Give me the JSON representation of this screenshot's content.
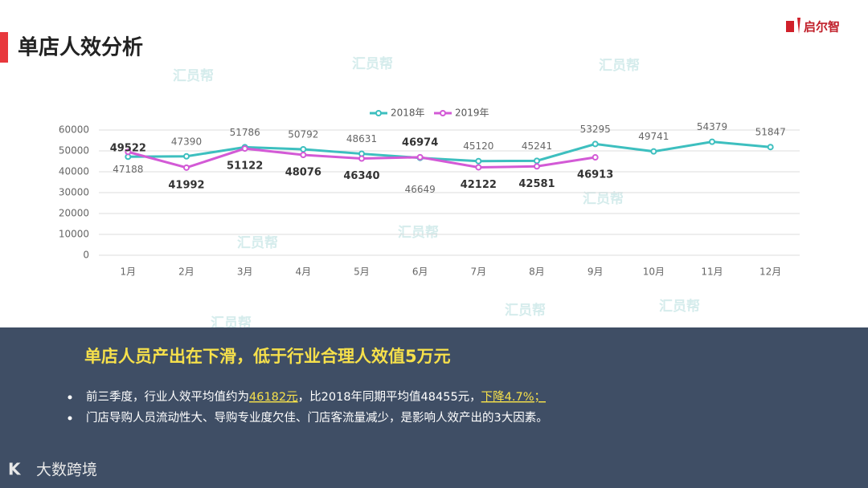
{
  "slide": {
    "title": "单店人效分析",
    "logo": "启尔智",
    "watermark": "汇员帮",
    "headline": "单店人员产出在下滑，低于行业合理人效值5万元",
    "bullets": [
      [
        "前三季度，行业人效平均值约为",
        "46182元",
        "，比2018年同期平均值48455元，",
        "下降4.7%；"
      ],
      [
        "门店导购人员流动性大、导购专业度欠佳、门店客流量减少，是影响人效产出的3大因素。"
      ]
    ],
    "footer_brand": "大数跨境"
  },
  "chart_data": {
    "type": "line",
    "categories": [
      "1月",
      "2月",
      "3月",
      "4月",
      "5月",
      "6月",
      "7月",
      "8月",
      "9月",
      "10月",
      "11月",
      "12月"
    ],
    "series": [
      {
        "name": "2018年",
        "color": "#3dbfbf",
        "values": [
          47188,
          47390,
          51786,
          50792,
          48631,
          46649,
          45120,
          45241,
          53295,
          49741,
          54379,
          51847
        ]
      },
      {
        "name": "2019年",
        "color": "#d35ad6",
        "values": [
          49522,
          41992,
          51122,
          48076,
          46340,
          46974,
          42122,
          42581,
          46913,
          null,
          null,
          null
        ]
      }
    ],
    "ylim": [
      0,
      60000
    ],
    "yticks": [
      0,
      10000,
      20000,
      30000,
      40000,
      50000,
      60000
    ],
    "grid": true,
    "legend": "top"
  }
}
